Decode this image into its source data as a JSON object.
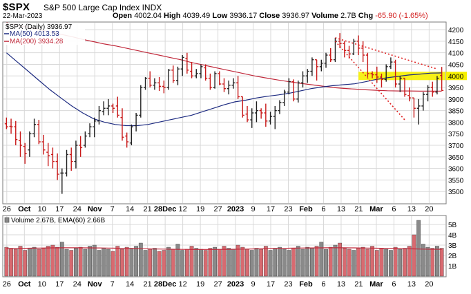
{
  "header": {
    "symbol": "$SPX",
    "name": "S&P 500 Large Cap Index",
    "exchange": "INDX",
    "date": "22-Mar-2023",
    "open_label": "Open",
    "open": "4002.04",
    "high_label": "High",
    "high": "4039.49",
    "low_label": "Low",
    "low": "3936.17",
    "close_label": "Close",
    "close": "3936.97",
    "volume_label": "Volume",
    "volume": "2.7B",
    "chg_label": "Chg",
    "chg": "-65.90 (-1.65%)"
  },
  "legend": {
    "main": "$SPX (Daily) 3936.97",
    "ma50": "MA(50) 4013.53",
    "ma200": "MA(200) 3934.28",
    "volume": "Volume 2.67B, EMA(60) 2.66B"
  },
  "colors": {
    "up": "#202020",
    "down": "#c81818",
    "ma50": "#1c2a80",
    "ma200": "#c0283a",
    "trend": "#e02020",
    "highlight": "#f6f000",
    "vol_up": "#8a8a8a",
    "vol_down": "#d86a70",
    "grid": "#d8d8d8"
  },
  "chart_data": [
    {
      "type": "ohlc",
      "title": "$SPX (Daily)",
      "y_range": [
        3450,
        4230
      ],
      "y_ticks": [
        3500,
        3550,
        3600,
        3650,
        3700,
        3750,
        3800,
        3850,
        3900,
        3950,
        4000,
        4050,
        4100,
        4150,
        4200
      ],
      "price_tag": "4000",
      "x_tick_labels": [
        "26",
        "Oct",
        "10",
        "17",
        "24",
        "Nov",
        "7",
        "14",
        "21",
        "28Dec",
        "12",
        "19",
        "27",
        "2023",
        "9",
        "17",
        "23",
        "Feb",
        "6",
        "13",
        "21",
        "Mar",
        "6",
        "13",
        "20"
      ],
      "bars": [
        [
          3793,
          3820,
          3770,
          3780
        ],
        [
          3782,
          3815,
          3750,
          3780
        ],
        [
          3780,
          3805,
          3700,
          3725
        ],
        [
          3720,
          3760,
          3650,
          3700
        ],
        [
          3695,
          3710,
          3620,
          3665
        ],
        [
          3680,
          3760,
          3650,
          3750
        ],
        [
          3750,
          3815,
          3735,
          3790
        ],
        [
          3790,
          3810,
          3705,
          3715
        ],
        [
          3715,
          3745,
          3660,
          3680
        ],
        [
          3670,
          3710,
          3610,
          3655
        ],
        [
          3660,
          3690,
          3600,
          3630
        ],
        [
          3630,
          3665,
          3550,
          3575
        ],
        [
          3580,
          3600,
          3490,
          3580
        ],
        [
          3580,
          3680,
          3565,
          3660
        ],
        [
          3660,
          3690,
          3590,
          3630
        ],
        [
          3630,
          3720,
          3600,
          3700
        ],
        [
          3700,
          3740,
          3650,
          3690
        ],
        [
          3700,
          3760,
          3690,
          3740
        ],
        [
          3750,
          3795,
          3735,
          3780
        ],
        [
          3780,
          3820,
          3735,
          3805
        ],
        [
          3805,
          3870,
          3790,
          3850
        ],
        [
          3845,
          3890,
          3830,
          3860
        ],
        [
          3860,
          3900,
          3830,
          3870
        ],
        [
          3870,
          3880,
          3840,
          3860
        ],
        [
          3870,
          3910,
          3820,
          3830
        ],
        [
          3820,
          3860,
          3720,
          3735
        ],
        [
          3740,
          3755,
          3690,
          3715
        ],
        [
          3710,
          3790,
          3700,
          3780
        ],
        [
          3785,
          3840,
          3760,
          3830
        ],
        [
          3830,
          3960,
          3820,
          3950
        ],
        [
          3950,
          3995,
          3940,
          3990
        ],
        [
          3990,
          4020,
          3950,
          3960
        ],
        [
          3960,
          3990,
          3940,
          3970
        ],
        [
          3970,
          3995,
          3935,
          3955
        ],
        [
          3955,
          3980,
          3925,
          3950
        ],
        [
          3950,
          4030,
          3940,
          4025
        ],
        [
          4025,
          4045,
          3970,
          3980
        ],
        [
          3980,
          4040,
          3960,
          4030
        ],
        [
          4030,
          4090,
          4000,
          4080
        ],
        [
          4075,
          4100,
          4010,
          4025
        ],
        [
          4020,
          4060,
          3990,
          4000
        ],
        [
          4000,
          4030,
          3990,
          4010
        ],
        [
          4010,
          4050,
          3990,
          4040
        ],
        [
          4035,
          4050,
          3980,
          3990
        ],
        [
          3990,
          4010,
          3940,
          3950
        ],
        [
          3950,
          4020,
          3945,
          4010
        ],
        [
          4010,
          4020,
          3960,
          3965
        ],
        [
          3965,
          3990,
          3930,
          3945
        ],
        [
          3945,
          3980,
          3920,
          3960
        ],
        [
          3960,
          3990,
          3945,
          3970
        ],
        [
          3970,
          4000,
          3900,
          3910
        ],
        [
          3910,
          3880,
          3820,
          3830
        ],
        [
          3835,
          3870,
          3800,
          3810
        ],
        [
          3810,
          3860,
          3775,
          3840
        ],
        [
          3840,
          3890,
          3800,
          3850
        ],
        [
          3850,
          3860,
          3815,
          3840
        ],
        [
          3840,
          3880,
          3780,
          3805
        ],
        [
          3805,
          3845,
          3790,
          3825
        ],
        [
          3825,
          3870,
          3770,
          3850
        ],
        [
          3850,
          3895,
          3835,
          3885
        ],
        [
          3885,
          3940,
          3870,
          3930
        ],
        [
          3930,
          3990,
          3920,
          3975
        ],
        [
          3975,
          3985,
          3890,
          3900
        ],
        [
          3900,
          3980,
          3885,
          3970
        ],
        [
          3970,
          4020,
          3950,
          4000
        ],
        [
          4000,
          4030,
          3970,
          4020
        ],
        [
          4020,
          4080,
          4000,
          4070
        ],
        [
          4070,
          4060,
          3980,
          4040
        ],
        [
          4040,
          4070,
          4020,
          4055
        ],
        [
          4055,
          4100,
          4035,
          4090
        ],
        [
          4090,
          4120,
          4060,
          4070
        ],
        [
          4070,
          4165,
          4060,
          4150
        ],
        [
          4150,
          4185,
          4120,
          4140
        ],
        [
          4140,
          4150,
          4080,
          4110
        ],
        [
          4110,
          4130,
          4075,
          4095
        ],
        [
          4095,
          4160,
          4090,
          4150
        ],
        [
          4150,
          4175,
          4090,
          4120
        ],
        [
          4120,
          4150,
          4060,
          4090
        ],
        [
          4090,
          4100,
          3995,
          4010
        ],
        [
          4010,
          4020,
          3990,
          4005
        ],
        [
          4005,
          4040,
          3970,
          3995
        ],
        [
          3995,
          4010,
          3950,
          3985
        ],
        [
          3985,
          4050,
          3975,
          4040
        ],
        [
          4040,
          4080,
          4030,
          4060
        ],
        [
          4060,
          4070,
          3950,
          3965
        ],
        [
          3965,
          4000,
          3930,
          3990
        ],
        [
          3990,
          3960,
          3910,
          3920
        ],
        [
          3915,
          3950,
          3890,
          3905
        ],
        [
          3905,
          3895,
          3820,
          3860
        ],
        [
          3860,
          3900,
          3790,
          3870
        ],
        [
          3870,
          3930,
          3850,
          3920
        ],
        [
          3920,
          3960,
          3890,
          3950
        ],
        [
          3950,
          3975,
          3910,
          3930
        ],
        [
          3930,
          4000,
          3920,
          3990
        ],
        [
          4002,
          4039,
          3936,
          3937
        ]
      ],
      "ma50": [
        4100,
        4060,
        4020,
        3980,
        3940,
        3905,
        3870,
        3840,
        3815,
        3800,
        3790,
        3785,
        3785,
        3790,
        3800,
        3810,
        3820,
        3830,
        3845,
        3860,
        3875,
        3888,
        3895,
        3905,
        3912,
        3918,
        3925,
        3935,
        3945,
        3952,
        3958,
        3962,
        3966,
        3975,
        3985,
        3992,
        3998,
        4004,
        4008,
        4012,
        4013
      ],
      "ma200": [
        4230,
        4220,
        4210,
        4200,
        4190,
        4180,
        4170,
        4158,
        4148,
        4138,
        4130,
        4120,
        4110,
        4100,
        4090,
        4080,
        4070,
        4058,
        4048,
        4038,
        4028,
        4018,
        4008,
        3998,
        3990,
        3982,
        3975,
        3968,
        3962,
        3956,
        3950,
        3946,
        3943,
        3940,
        3938,
        3936,
        3935,
        3935,
        3934,
        3934,
        3934
      ],
      "trendlines": [
        {
          "from": [
            71,
            4165
          ],
          "to": [
            93,
            4030
          ]
        },
        {
          "from": [
            71,
            4150
          ],
          "to": [
            86,
            3810
          ]
        }
      ],
      "highlight_band": [
        3982,
        4018
      ]
    },
    {
      "type": "bar",
      "title": "Volume",
      "y_range": [
        0,
        5.8
      ],
      "y_ticks": [
        1,
        2,
        3,
        4,
        5
      ],
      "y_tick_labels": [
        "1B",
        "2B",
        "3B",
        "4B",
        "5B"
      ],
      "values": [
        2.8,
        2.7,
        2.6,
        2.9,
        2.5,
        2.7,
        2.8,
        2.6,
        2.7,
        2.9,
        3.0,
        2.8,
        3.3,
        2.6,
        2.5,
        2.7,
        2.8,
        2.6,
        2.9,
        3.0,
        2.5,
        2.7,
        2.6,
        2.4,
        2.9,
        2.6,
        2.8,
        2.7,
        2.9,
        3.2,
        2.5,
        2.6,
        2.7,
        2.4,
        2.5,
        2.8,
        2.6,
        3.1,
        2.5,
        2.6,
        2.9,
        2.7,
        2.6,
        2.5,
        2.7,
        2.8,
        2.6,
        2.9,
        2.7,
        2.6,
        3.0,
        2.8,
        2.6,
        2.5,
        2.7,
        2.6,
        2.9,
        2.5,
        2.7,
        2.8,
        2.6,
        2.5,
        2.7,
        2.9,
        2.6,
        2.8,
        2.7,
        2.9,
        3.3,
        2.6,
        2.8,
        3.0,
        3.2,
        2.7,
        2.6,
        2.5,
        2.7,
        2.8,
        2.6,
        2.9,
        2.5,
        2.7,
        2.6,
        2.5,
        2.8,
        2.6,
        2.7,
        2.9,
        4.0,
        5.4,
        3.1,
        2.8,
        2.7,
        2.9,
        2.7
      ],
      "ema60": 2.66
    }
  ]
}
